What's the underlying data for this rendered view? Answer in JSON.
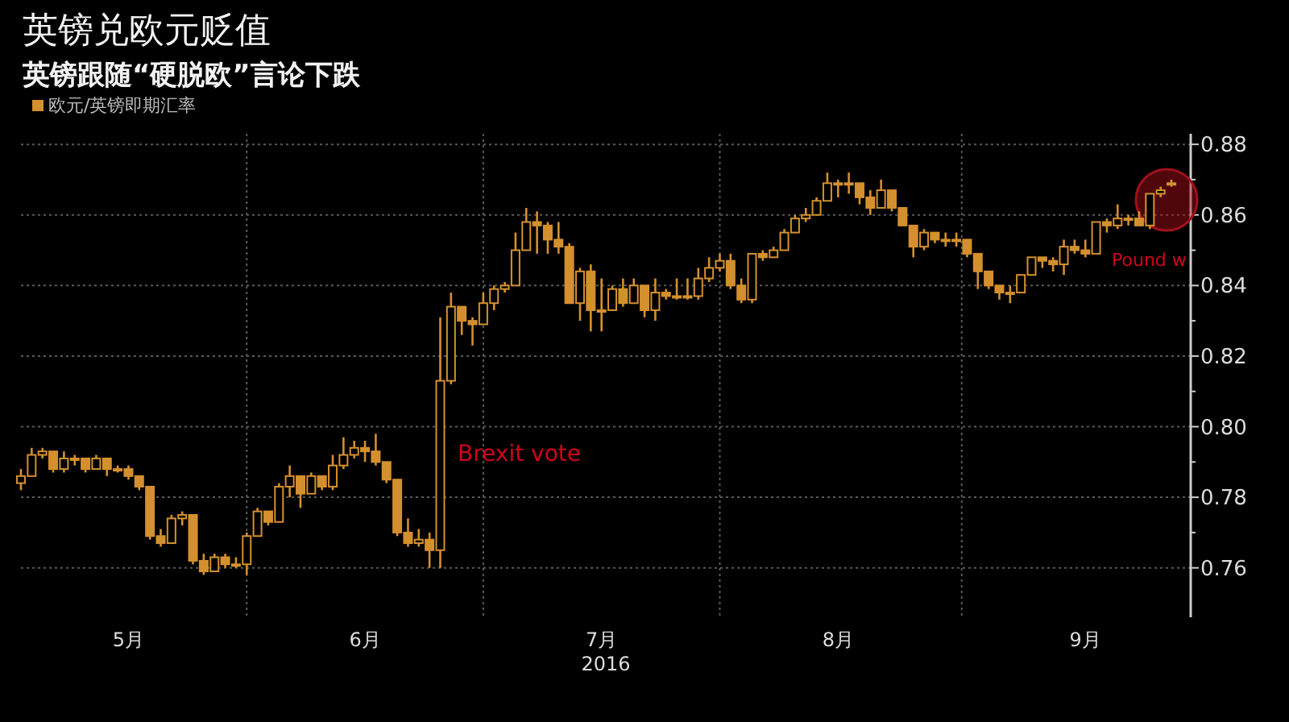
{
  "chart_data": {
    "type": "candlestick",
    "title": "英镑兑欧元贬值",
    "subtitle": "英镑跟随“硬脱欧”言论下跌",
    "xlabel": "2016",
    "categories": [
      null,
      null,
      null,
      null,
      null,
      null,
      null,
      null,
      null,
      null,
      "5月",
      null,
      null,
      null,
      null,
      null,
      null,
      null,
      null,
      null,
      null,
      null,
      null,
      null,
      null,
      null,
      null,
      null,
      null,
      null,
      null,
      null,
      "6月",
      null,
      null,
      null,
      null,
      null,
      null,
      null,
      null,
      null,
      null,
      null,
      null,
      null,
      null,
      null,
      null,
      null,
      null,
      null,
      null,
      null,
      "7月",
      null,
      null,
      null,
      null,
      null,
      null,
      null,
      null,
      null,
      null,
      null,
      null,
      null,
      null,
      null,
      null,
      null,
      null,
      null,
      null,
      null,
      "8月",
      null,
      null,
      null,
      null,
      null,
      null,
      null,
      null,
      null,
      null,
      null,
      null,
      null,
      null,
      null,
      null,
      null,
      null,
      null,
      null,
      null,
      null,
      "9月",
      null,
      null,
      null,
      null,
      null,
      null,
      null,
      null
    ],
    "series": [
      {
        "name": "欧元/英镑即期汇率",
        "color": "#d4902e",
        "ohlc": [
          [
            0.784,
            0.788,
            0.782,
            0.786
          ],
          [
            0.786,
            0.794,
            0.786,
            0.792
          ],
          [
            0.792,
            0.794,
            0.791,
            0.793
          ],
          [
            0.793,
            0.793,
            0.787,
            0.788
          ],
          [
            0.788,
            0.793,
            0.787,
            0.791
          ],
          [
            0.791,
            0.792,
            0.789,
            0.791
          ],
          [
            0.791,
            0.791,
            0.787,
            0.788
          ],
          [
            0.788,
            0.792,
            0.788,
            0.791
          ],
          [
            0.791,
            0.791,
            0.786,
            0.788
          ],
          [
            0.788,
            0.789,
            0.787,
            0.788
          ],
          [
            0.788,
            0.789,
            0.785,
            0.786
          ],
          [
            0.786,
            0.786,
            0.782,
            0.783
          ],
          [
            0.783,
            0.783,
            0.768,
            0.769
          ],
          [
            0.769,
            0.771,
            0.766,
            0.767
          ],
          [
            0.767,
            0.775,
            0.767,
            0.774
          ],
          [
            0.774,
            0.776,
            0.772,
            0.775
          ],
          [
            0.775,
            0.775,
            0.761,
            0.762
          ],
          [
            0.762,
            0.764,
            0.758,
            0.759
          ],
          [
            0.759,
            0.764,
            0.759,
            0.763
          ],
          [
            0.763,
            0.764,
            0.76,
            0.761
          ],
          [
            0.761,
            0.763,
            0.76,
            0.761
          ],
          [
            0.761,
            0.77,
            0.758,
            0.769
          ],
          [
            0.769,
            0.777,
            0.769,
            0.776
          ],
          [
            0.776,
            0.776,
            0.772,
            0.773
          ],
          [
            0.773,
            0.784,
            0.773,
            0.783
          ],
          [
            0.783,
            0.789,
            0.78,
            0.786
          ],
          [
            0.786,
            0.786,
            0.777,
            0.781
          ],
          [
            0.781,
            0.787,
            0.781,
            0.786
          ],
          [
            0.786,
            0.786,
            0.782,
            0.783
          ],
          [
            0.783,
            0.792,
            0.782,
            0.789
          ],
          [
            0.789,
            0.797,
            0.788,
            0.792
          ],
          [
            0.792,
            0.796,
            0.791,
            0.794
          ],
          [
            0.794,
            0.796,
            0.79,
            0.793
          ],
          [
            0.793,
            0.798,
            0.789,
            0.79
          ],
          [
            0.79,
            0.79,
            0.784,
            0.785
          ],
          [
            0.785,
            0.785,
            0.769,
            0.77
          ],
          [
            0.77,
            0.774,
            0.766,
            0.767
          ],
          [
            0.767,
            0.771,
            0.766,
            0.768
          ],
          [
            0.768,
            0.77,
            0.76,
            0.765
          ],
          [
            0.765,
            0.831,
            0.76,
            0.813
          ],
          [
            0.813,
            0.838,
            0.812,
            0.834
          ],
          [
            0.834,
            0.834,
            0.826,
            0.83
          ],
          [
            0.83,
            0.831,
            0.823,
            0.829
          ],
          [
            0.829,
            0.838,
            0.829,
            0.835
          ],
          [
            0.835,
            0.84,
            0.833,
            0.839
          ],
          [
            0.839,
            0.841,
            0.838,
            0.84
          ],
          [
            0.84,
            0.855,
            0.84,
            0.85
          ],
          [
            0.85,
            0.862,
            0.85,
            0.858
          ],
          [
            0.858,
            0.861,
            0.849,
            0.857
          ],
          [
            0.857,
            0.858,
            0.849,
            0.853
          ],
          [
            0.853,
            0.858,
            0.849,
            0.851
          ],
          [
            0.851,
            0.852,
            0.835,
            0.835
          ],
          [
            0.835,
            0.845,
            0.83,
            0.844
          ],
          [
            0.844,
            0.846,
            0.827,
            0.833
          ],
          [
            0.833,
            0.842,
            0.827,
            0.833
          ],
          [
            0.833,
            0.84,
            0.833,
            0.839
          ],
          [
            0.839,
            0.842,
            0.834,
            0.835
          ],
          [
            0.835,
            0.842,
            0.835,
            0.84
          ],
          [
            0.84,
            0.84,
            0.831,
            0.833
          ],
          [
            0.833,
            0.842,
            0.83,
            0.838
          ],
          [
            0.838,
            0.839,
            0.836,
            0.837
          ],
          [
            0.837,
            0.842,
            0.836,
            0.837
          ],
          [
            0.837,
            0.842,
            0.836,
            0.837
          ],
          [
            0.837,
            0.845,
            0.836,
            0.842
          ],
          [
            0.842,
            0.848,
            0.841,
            0.845
          ],
          [
            0.845,
            0.849,
            0.844,
            0.847
          ],
          [
            0.847,
            0.849,
            0.839,
            0.84
          ],
          [
            0.84,
            0.842,
            0.835,
            0.836
          ],
          [
            0.836,
            0.849,
            0.835,
            0.849
          ],
          [
            0.849,
            0.85,
            0.847,
            0.848
          ],
          [
            0.848,
            0.851,
            0.848,
            0.85
          ],
          [
            0.85,
            0.856,
            0.85,
            0.855
          ],
          [
            0.855,
            0.86,
            0.855,
            0.859
          ],
          [
            0.859,
            0.862,
            0.858,
            0.86
          ],
          [
            0.86,
            0.865,
            0.86,
            0.864
          ],
          [
            0.864,
            0.872,
            0.864,
            0.869
          ],
          [
            0.869,
            0.87,
            0.865,
            0.869
          ],
          [
            0.869,
            0.872,
            0.866,
            0.869
          ],
          [
            0.869,
            0.869,
            0.863,
            0.865
          ],
          [
            0.865,
            0.867,
            0.86,
            0.862
          ],
          [
            0.862,
            0.87,
            0.862,
            0.867
          ],
          [
            0.867,
            0.867,
            0.861,
            0.862
          ],
          [
            0.862,
            0.862,
            0.857,
            0.857
          ],
          [
            0.857,
            0.857,
            0.848,
            0.851
          ],
          [
            0.851,
            0.856,
            0.85,
            0.855
          ],
          [
            0.855,
            0.855,
            0.852,
            0.853
          ],
          [
            0.853,
            0.855,
            0.851,
            0.853
          ],
          [
            0.853,
            0.855,
            0.851,
            0.853
          ],
          [
            0.853,
            0.853,
            0.848,
            0.849
          ],
          [
            0.849,
            0.849,
            0.839,
            0.844
          ],
          [
            0.844,
            0.844,
            0.839,
            0.84
          ],
          [
            0.84,
            0.84,
            0.836,
            0.838
          ],
          [
            0.838,
            0.84,
            0.835,
            0.838
          ],
          [
            0.838,
            0.843,
            0.838,
            0.843
          ],
          [
            0.843,
            0.848,
            0.843,
            0.848
          ],
          [
            0.848,
            0.848,
            0.845,
            0.847
          ],
          [
            0.847,
            0.848,
            0.844,
            0.846
          ],
          [
            0.846,
            0.853,
            0.843,
            0.851
          ],
          [
            0.851,
            0.853,
            0.849,
            0.85
          ],
          [
            0.85,
            0.853,
            0.848,
            0.849
          ],
          [
            0.849,
            0.858,
            0.849,
            0.858
          ],
          [
            0.858,
            0.859,
            0.855,
            0.857
          ],
          [
            0.857,
            0.863,
            0.856,
            0.859
          ],
          [
            0.859,
            0.86,
            0.857,
            0.859
          ],
          [
            0.859,
            0.861,
            0.857,
            0.857
          ],
          [
            0.857,
            0.866,
            0.856,
            0.866
          ],
          [
            0.866,
            0.868,
            0.865,
            0.867
          ],
          [
            0.869,
            0.87,
            0.868,
            0.869
          ]
        ]
      }
    ],
    "ylim": [
      0.746,
      0.883
    ],
    "yticks": [
      0.76,
      {
        "value": 0.77,
        "label": null
      },
      0.78,
      {
        "value": 0.79,
        "label": null
      },
      {
        "value": 0.8,
        "label": "0.80"
      },
      {
        "value": 0.81,
        "label": null
      },
      0.82,
      {
        "value": 0.83,
        "label": null
      },
      0.84,
      {
        "value": 0.85,
        "label": null
      },
      0.86,
      {
        "value": 0.87,
        "label": null
      },
      0.88
    ],
    "grid": true,
    "legend": "top left",
    "annotations": [
      "Brexit vote",
      "Pound w"
    ]
  }
}
